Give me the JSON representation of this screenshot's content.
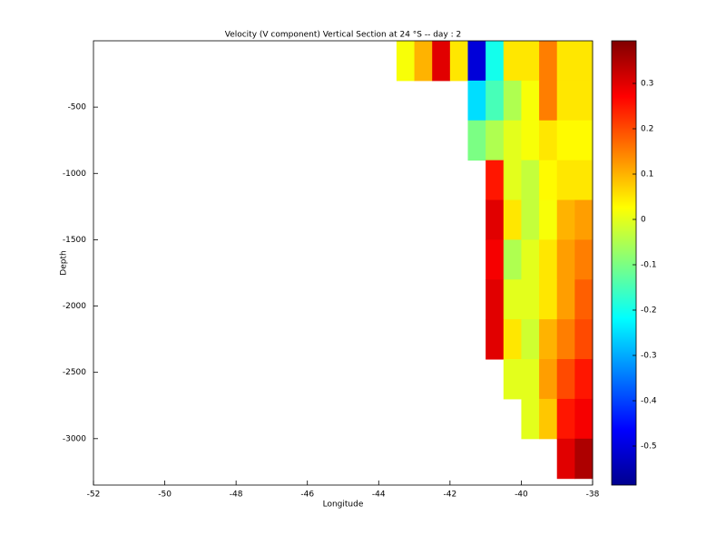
{
  "chart_data": {
    "type": "heatmap",
    "title": "Velocity (V component) Vertical Section at 24 °S -- day : 2",
    "xlabel": "Longitude",
    "ylabel": "Depth",
    "x": [
      -43.25,
      -42.75,
      -42.25,
      -41.75,
      -41.25,
      -40.75,
      -40.25,
      -39.75,
      -39.25,
      -38.75,
      -38.25
    ],
    "y": [
      -150,
      -450,
      -750,
      -1050,
      -1350,
      -1650,
      -1950,
      -2250,
      -2550,
      -2850,
      -3150
    ],
    "z": [
      [
        0.02,
        0.1,
        0.3,
        0.05,
        -0.5,
        -0.2,
        0.05,
        0.05,
        0.15,
        0.05,
        0.05
      ],
      [
        null,
        null,
        null,
        null,
        -0.25,
        -0.15,
        -0.05,
        0.02,
        0.15,
        0.05,
        0.05
      ],
      [
        null,
        null,
        null,
        null,
        -0.1,
        -0.05,
        0,
        0.02,
        0.05,
        0.03,
        0.03
      ],
      [
        null,
        null,
        null,
        null,
        null,
        0.25,
        0,
        -0.03,
        0.03,
        0.05,
        0.05
      ],
      [
        null,
        null,
        null,
        null,
        null,
        0.3,
        0.05,
        -0.03,
        0.02,
        0.1,
        0.12
      ],
      [
        null,
        null,
        null,
        null,
        null,
        0.28,
        -0.05,
        0,
        0.05,
        0.12,
        0.15
      ],
      [
        null,
        null,
        null,
        null,
        null,
        0.3,
        0,
        0,
        0.05,
        0.12,
        0.18
      ],
      [
        null,
        null,
        null,
        null,
        null,
        0.3,
        0.05,
        -0.02,
        0.1,
        0.15,
        0.2
      ],
      [
        null,
        null,
        null,
        null,
        null,
        null,
        0,
        0,
        0.12,
        0.2,
        0.25
      ],
      [
        null,
        null,
        null,
        null,
        null,
        null,
        null,
        0,
        0.08,
        0.25,
        0.28
      ],
      [
        null,
        null,
        null,
        null,
        null,
        null,
        null,
        null,
        null,
        0.3,
        0.35
      ]
    ],
    "colormap": "jet",
    "xlim": [
      -52,
      -38
    ],
    "xticks": [
      -52,
      -50,
      -48,
      -46,
      -44,
      -42,
      -40,
      -38
    ],
    "ylim": [
      -3350,
      0
    ],
    "yticks": [
      -3000,
      -2500,
      -2000,
      -1500,
      -1000,
      -500
    ],
    "clim": [
      -0.586,
      0.394
    ],
    "cticks": [
      -0.5,
      -0.4,
      -0.3,
      -0.2,
      -0.1,
      0,
      0.1,
      0.2,
      0.3
    ]
  }
}
